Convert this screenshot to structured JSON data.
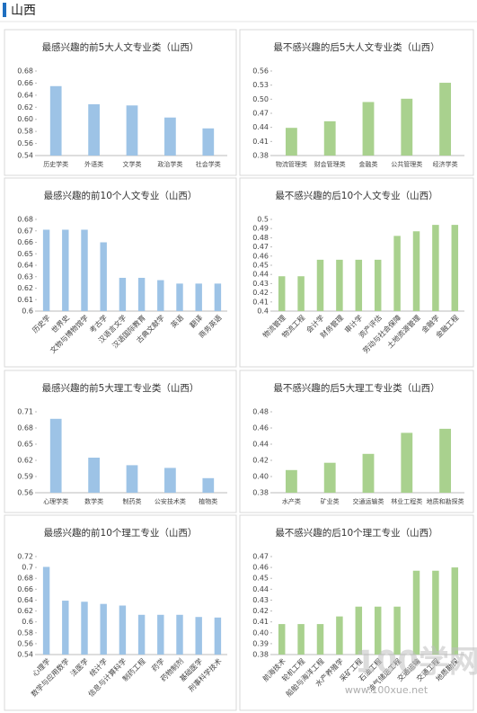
{
  "header": {
    "title": "山西"
  },
  "watermark": {
    "logo": "100学网",
    "url": "www.100xue.net"
  },
  "chart_data": [
    {
      "type": "bar",
      "title": "最感兴趣的前5大人文专业类（山西）",
      "color": "#9dc3e6",
      "categories": [
        "历史学类",
        "外语类",
        "文学类",
        "政治学类",
        "社会学类"
      ],
      "values": [
        0.655,
        0.625,
        0.623,
        0.603,
        0.585
      ],
      "ylim": [
        0.54,
        0.68
      ],
      "yticks": [
        0.54,
        0.56,
        0.58,
        {
          "value": 0.6,
          "label": "0.60"
        },
        0.62,
        0.64,
        0.66,
        0.68
      ]
    },
    {
      "type": "bar",
      "title": "最不感兴趣的后5大人文专业类（山西）",
      "color": "#a9d18e",
      "categories": [
        "物流管理类",
        "财会管理类",
        "金融类",
        "公共管理类",
        "经济学类"
      ],
      "values": [
        0.439,
        0.453,
        0.494,
        0.501,
        0.535
      ],
      "ylim": [
        0.38,
        0.56
      ],
      "yticks": [
        0.38,
        0.41,
        0.44,
        0.47,
        {
          "value": 0.5,
          "label": "0.50"
        },
        0.53,
        0.56
      ]
    },
    {
      "type": "bar",
      "title": "最感兴趣的前10个人文专业（山西）",
      "color": "#9dc3e6",
      "categories": [
        "历史学",
        "世界史",
        "文物与博物馆学",
        "考古学",
        "汉语言文学",
        "汉语国际教育",
        "古典文献学",
        "英语",
        "翻译",
        "商务英语"
      ],
      "values": [
        0.671,
        0.671,
        0.671,
        0.66,
        0.629,
        0.629,
        0.627,
        0.624,
        0.624,
        0.624
      ],
      "ylim": [
        0.6,
        0.68
      ],
      "yticks": [
        0.6,
        0.61,
        0.62,
        0.63,
        0.64,
        0.65,
        0.66,
        0.67,
        0.68
      ]
    },
    {
      "type": "bar",
      "title": "最不感兴趣的后10个人文专业（山西）",
      "color": "#a9d18e",
      "categories": [
        "物流管理",
        "物流工程",
        "会计学",
        "财务管理",
        "审计学",
        "资产评估",
        "劳动与社会保障",
        "土地资源管理",
        "金融学",
        "金融工程"
      ],
      "values": [
        0.438,
        0.438,
        0.456,
        0.456,
        0.456,
        0.456,
        0.482,
        0.487,
        0.494,
        0.494
      ],
      "ylim": [
        0.4,
        0.5
      ],
      "yticks": [
        0.4,
        0.41,
        0.42,
        0.43,
        0.44,
        0.45,
        0.46,
        0.47,
        0.48,
        0.49,
        0.5
      ]
    },
    {
      "type": "bar",
      "title": "最感兴趣的前5大理工专业类（山西）",
      "color": "#9dc3e6",
      "categories": [
        "心理学类",
        "数学类",
        "制药类",
        "公安技术类",
        "植物类"
      ],
      "values": [
        0.697,
        0.625,
        0.611,
        0.606,
        0.587
      ],
      "ylim": [
        0.56,
        0.71
      ],
      "yticks": [
        0.56,
        0.59,
        0.62,
        0.65,
        0.68,
        0.71
      ]
    },
    {
      "type": "bar",
      "title": "最不感兴趣的后5大理工专业类（山西）",
      "color": "#a9d18e",
      "categories": [
        "水产类",
        "矿业类",
        "交通运输类",
        "林业工程类",
        "地质和勘探类"
      ],
      "values": [
        0.408,
        0.417,
        0.428,
        0.454,
        0.459
      ],
      "ylim": [
        0.38,
        0.48
      ],
      "yticks": [
        0.38,
        {
          "value": 0.4,
          "label": "0.40"
        },
        0.42,
        0.44,
        0.46,
        0.48
      ]
    },
    {
      "type": "bar",
      "title": "最感兴趣的前10个理工专业（山西）",
      "color": "#9dc3e6",
      "categories": [
        "心理学",
        "数学与应用数学",
        "法医学",
        "统计学",
        "信息与计算科学",
        "制药工程",
        "药学",
        "药物制剂",
        "基础医学",
        "刑事科学技术"
      ],
      "values": [
        0.701,
        0.639,
        0.637,
        0.633,
        0.63,
        0.613,
        0.613,
        0.613,
        0.609,
        0.608
      ],
      "ylim": [
        0.54,
        0.72
      ],
      "yticks": [
        0.54,
        0.56,
        0.58,
        0.6,
        0.62,
        0.64,
        0.66,
        0.68,
        0.7,
        0.72
      ]
    },
    {
      "type": "bar",
      "title": "最不感兴趣的后10个理工专业（山西）",
      "color": "#a9d18e",
      "categories": [
        "航海技术",
        "轮机工程",
        "船舶与海洋工程",
        "水产养殖学",
        "采矿工程",
        "石油工程",
        "油气储运工程",
        "交通运输",
        "交通工程",
        "地质勘探"
      ],
      "values": [
        0.408,
        0.408,
        0.408,
        0.415,
        0.424,
        0.424,
        0.424,
        0.457,
        0.457,
        0.46
      ],
      "ylim": [
        0.38,
        0.47
      ],
      "yticks": [
        0.38,
        0.39,
        {
          "value": 0.4,
          "label": "0.40"
        },
        0.41,
        0.42,
        0.43,
        0.44,
        0.45,
        0.46,
        0.47
      ]
    }
  ]
}
